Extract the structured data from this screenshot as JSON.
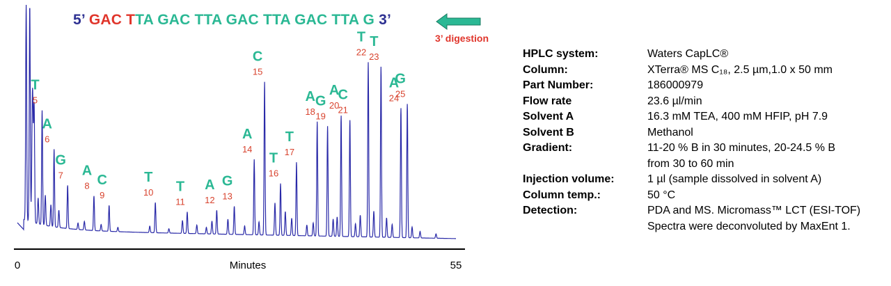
{
  "sequence": {
    "prime5": "5’",
    "digested": "GAC T",
    "intact": "TA GAC TTA GAC TTA GAC TTA G",
    "prime3": "3’"
  },
  "digestion_label": "3’ digestion",
  "colors": {
    "trace": "#2a2aa8",
    "base_label": "#2bb894",
    "peak_number": "#d8432e",
    "digested": "#e0352b",
    "end_label": "#2e3192",
    "arrow": "#2bb894"
  },
  "chart_data": {
    "type": "line",
    "title": "",
    "xlabel": "Minutes",
    "ylabel": "",
    "xlim": [
      0,
      55
    ],
    "ylim": [
      0,
      100
    ],
    "x_ticks": [
      "0",
      "55"
    ],
    "grid": false,
    "peaks": [
      {
        "number": "5",
        "base": "T",
        "time": 3.1,
        "height": 53
      },
      {
        "number": "6",
        "base": "A",
        "time": 4.6,
        "height": 36
      },
      {
        "number": "7",
        "base": "G",
        "time": 6.3,
        "height": 20
      },
      {
        "number": "8",
        "base": "A",
        "time": 9.6,
        "height": 16
      },
      {
        "number": "9",
        "base": "C",
        "time": 11.5,
        "height": 12
      },
      {
        "number": "10",
        "base": "T",
        "time": 17.3,
        "height": 14
      },
      {
        "number": "11",
        "base": "T",
        "time": 21.3,
        "height": 10
      },
      {
        "number": "12",
        "base": "A",
        "time": 25.0,
        "height": 11
      },
      {
        "number": "13",
        "base": "G",
        "time": 27.2,
        "height": 13
      },
      {
        "number": "14",
        "base": "A",
        "time": 29.7,
        "height": 35
      },
      {
        "number": "15",
        "base": "C",
        "time": 31.0,
        "height": 71
      },
      {
        "number": "16",
        "base": "T",
        "time": 33.0,
        "height": 24
      },
      {
        "number": "17",
        "base": "T",
        "time": 35.0,
        "height": 34
      },
      {
        "number": "18",
        "base": "A",
        "time": 37.6,
        "height": 53
      },
      {
        "number": "19",
        "base": "G",
        "time": 38.9,
        "height": 51
      },
      {
        "number": "20",
        "base": "A",
        "time": 40.6,
        "height": 56
      },
      {
        "number": "21",
        "base": "C",
        "time": 41.7,
        "height": 54
      },
      {
        "number": "22",
        "base": "T",
        "time": 44.0,
        "height": 81
      },
      {
        "number": "23",
        "base": "T",
        "time": 45.6,
        "height": 79
      },
      {
        "number": "24",
        "base": "A",
        "time": 48.1,
        "height": 60
      },
      {
        "number": "25",
        "base": "G",
        "time": 48.9,
        "height": 62
      }
    ],
    "solvent_front": [
      {
        "time": 1.1,
        "height": 100
      },
      {
        "time": 1.55,
        "height": 100
      },
      {
        "time": 2.1,
        "height": 52
      }
    ]
  },
  "method": [
    {
      "label": "HPLC system:",
      "value": "Waters CapLC®"
    },
    {
      "label": "Column:",
      "value": "XTerra® MS C₁₈, 2.5 µm,1.0 x 50 mm"
    },
    {
      "label": "Part Number:",
      "value": "186000979"
    },
    {
      "label": "Flow rate",
      "value": "23.6 µl/min"
    },
    {
      "label": "Solvent A",
      "value": "16.3 mM TEA, 400 mM HFIP, pH 7.9"
    },
    {
      "label": "Solvent B",
      "value": "Methanol"
    },
    {
      "label": "Gradient:",
      "value": "11-20 % B in 30 minutes, 20-24.5 % B",
      "cont": "from 30 to 60 min"
    },
    {
      "label": "Injection volume:",
      "value": "1 µl (sample dissolved in solvent A)"
    },
    {
      "label": "Column temp.:",
      "value": "50 °C"
    },
    {
      "label": "Detection:",
      "value": "PDA and MS. Micromass™ LCT (ESI-TOF)",
      "cont": "Spectra were deconvoluted by MaxEnt 1."
    }
  ]
}
